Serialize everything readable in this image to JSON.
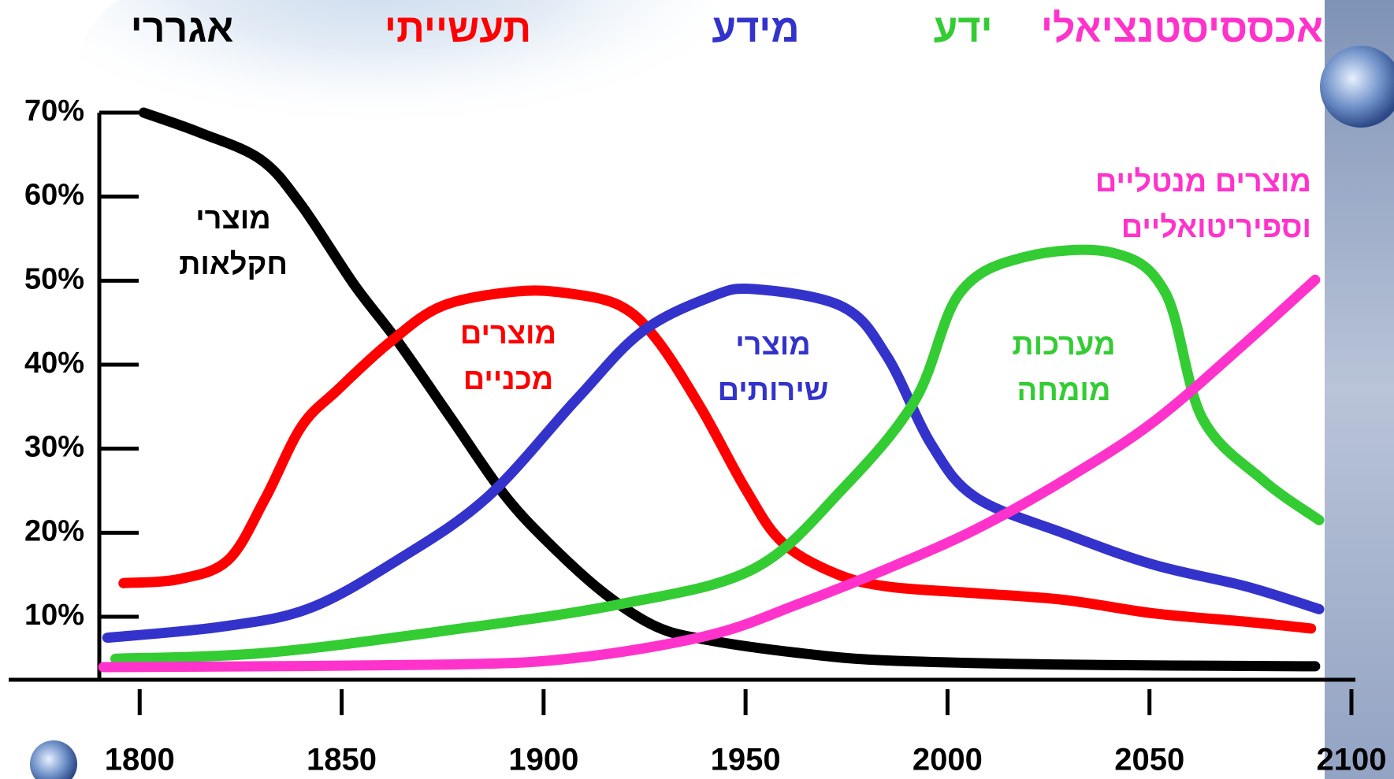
{
  "chart_data": {
    "type": "line",
    "header": [
      {
        "text": "אגררי",
        "color": "#000000"
      },
      {
        "text": "תעשייתי",
        "color": "#ff0000"
      },
      {
        "text": "מידע",
        "color": "#3333cc"
      },
      {
        "text": "ידע",
        "color": "#33cc33"
      },
      {
        "text": "אכססיסטנציאלי",
        "color": "#ff33cc"
      }
    ],
    "xlim": [
      1790,
      2100
    ],
    "xticks": [
      1800,
      1850,
      1900,
      1950,
      2000,
      2050,
      2100
    ],
    "ylim": [
      2.5,
      70
    ],
    "yticks": [
      {
        "value": 10,
        "label": "10%"
      },
      {
        "value": 20,
        "label": "20%"
      },
      {
        "value": 30,
        "label": "30%"
      },
      {
        "value": 40,
        "label": "40%"
      },
      {
        "value": 50,
        "label": "50%"
      },
      {
        "value": 60,
        "label": "60%"
      },
      {
        "value": 70,
        "label": "70%"
      }
    ],
    "series": [
      {
        "name": [
          "מוצרי",
          "חקלאות"
        ],
        "color": "#000000",
        "x": [
          1801,
          1815,
          1830,
          1840,
          1853,
          1864,
          1877,
          1890,
          1901,
          1915,
          1928,
          1941,
          1963,
          1985,
          2029,
          2091
        ],
        "values": [
          70,
          67.6,
          64.4,
          59,
          49.6,
          42.7,
          33.7,
          24.7,
          18.9,
          12.8,
          8.8,
          7.2,
          5.7,
          4.8,
          4.3,
          4.1
        ]
      },
      {
        "name": [
          "מוצרים",
          "מכניים"
        ],
        "color": "#ff0000",
        "x": [
          1796,
          1810,
          1822,
          1831,
          1840,
          1849,
          1862,
          1875,
          1893,
          1906,
          1919,
          1928,
          1939,
          1950,
          1959,
          1972,
          1985,
          2007,
          2029,
          2051,
          2074,
          2090
        ],
        "values": [
          14,
          14.5,
          16.8,
          24,
          32.6,
          37,
          42.7,
          47,
          48.7,
          48.5,
          47,
          43,
          34.8,
          25.2,
          18.9,
          15.2,
          13.6,
          12.8,
          12,
          10.4,
          9.4,
          8.6
        ]
      },
      {
        "name": [
          "מוצרי",
          "שירותים"
        ],
        "color": "#3333cc",
        "x": [
          1792,
          1820,
          1842,
          1864,
          1886,
          1908,
          1924,
          1941,
          1952,
          1974,
          1985,
          1996,
          2007,
          2029,
          2051,
          2074,
          2092
        ],
        "values": [
          7.5,
          8.8,
          11,
          16.8,
          24.2,
          35.8,
          43.8,
          48,
          49,
          46.9,
          41,
          30.5,
          24.2,
          19.9,
          16.2,
          13.6,
          10.9
        ]
      },
      {
        "name": [
          "מערכות",
          "מומחה"
        ],
        "color": "#33cc33",
        "x": [
          1794,
          1831,
          1875,
          1919,
          1952,
          1974,
          1992,
          2003,
          2019,
          2041,
          2054,
          2063,
          2078,
          2092
        ],
        "values": [
          5,
          5.7,
          8.3,
          11.5,
          15.7,
          25.2,
          35.8,
          48.5,
          52.8,
          53.3,
          48.5,
          33.7,
          26.3,
          21.5
        ]
      },
      {
        "name": [
          "מוצרים מנטליים",
          "וספיריטואליים"
        ],
        "color": "#ff33cc",
        "x": [
          1791,
          1875,
          1908,
          1941,
          1963,
          1985,
          2007,
          2029,
          2051,
          2074,
          2091
        ],
        "values": [
          4,
          4.3,
          5.1,
          7.8,
          11.5,
          15.7,
          20.4,
          26.3,
          33.2,
          42.7,
          50.1
        ]
      }
    ]
  }
}
